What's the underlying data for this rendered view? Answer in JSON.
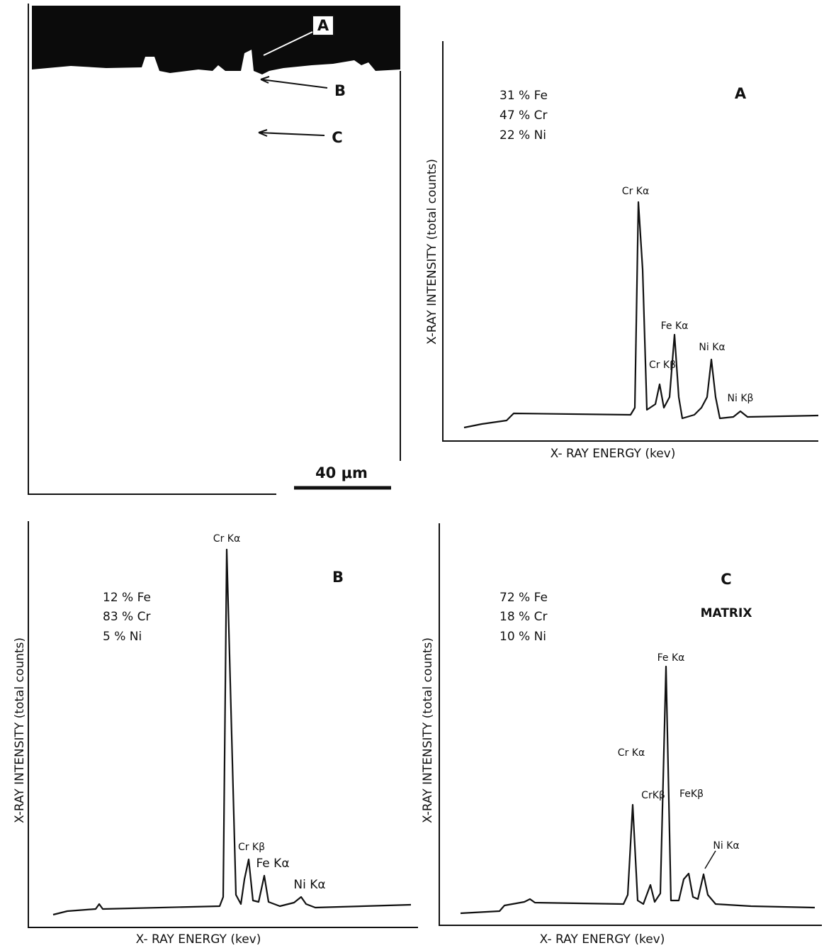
{
  "micrograph": {
    "labels": [
      "A",
      "B",
      "C"
    ],
    "scale_bar": "40 μm"
  },
  "panels": [
    {
      "label": "A",
      "composition": [
        "31 % Fe",
        "47 % Cr",
        "22 % Ni"
      ],
      "y_axis_label": "X-RAY  INTENSITY (total  counts)",
      "x_axis_label": "X- RAY   ENERGY (kev)",
      "peaks": [
        "Cr Kα",
        "Fe Kα",
        "Cr Kβ",
        "Ni Kα",
        "Ni Kβ"
      ]
    },
    {
      "label": "B",
      "composition": [
        "12 % Fe",
        "83 % Cr",
        "5 % Ni"
      ],
      "y_axis_label": "X-RAY  INTENSITY (total  counts)",
      "x_axis_label": "X- RAY   ENERGY (kev)",
      "peaks": [
        "Cr Kα",
        "Cr Kβ",
        "Fe Kα",
        "Ni Kα"
      ]
    },
    {
      "label": "C",
      "note": "MATRIX",
      "composition": [
        "72 % Fe",
        "18 % Cr",
        "10 % Ni"
      ],
      "y_axis_label": "X-RAY  INTENSITY (total  counts)",
      "x_axis_label": "X- RAY   ENERGY (kev)",
      "peaks": [
        "Fe Kα",
        "Cr Kα",
        "CrKβ",
        "FeKβ",
        "Ni Kα"
      ]
    }
  ]
}
